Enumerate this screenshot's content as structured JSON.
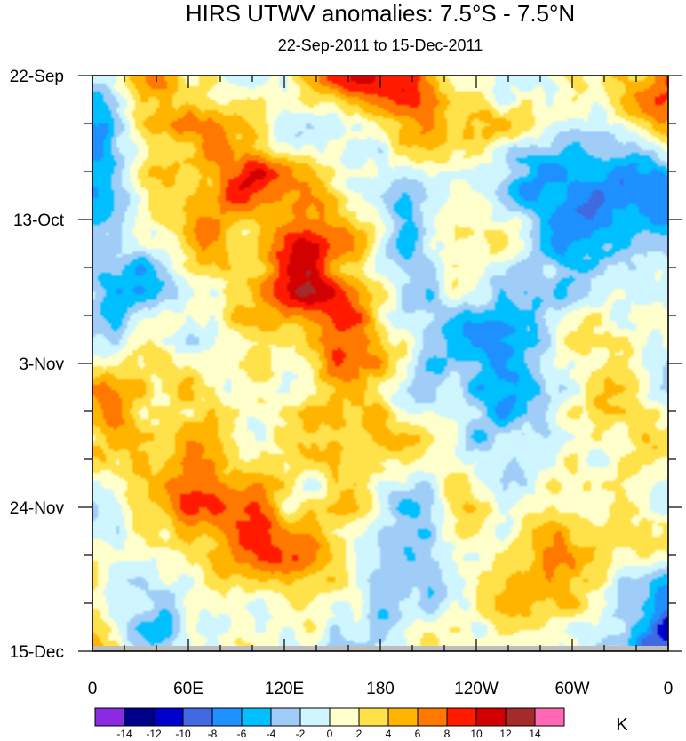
{
  "chart_data": {
    "type": "heatmap",
    "title": "HIRS UTWV anomalies: 7.5°S - 7.5°N",
    "subtitle": "22-Sep-2011 to 15-Dec-2011",
    "units": "K",
    "x_ticks": [
      {
        "lon": 0,
        "label": "0"
      },
      {
        "lon": 60,
        "label": "60E"
      },
      {
        "lon": 120,
        "label": "120E"
      },
      {
        "lon": 180,
        "label": "180"
      },
      {
        "lon": 240,
        "label": "120W"
      },
      {
        "lon": 300,
        "label": "60W"
      },
      {
        "lon": 360,
        "label": "0"
      }
    ],
    "xlim": [
      0,
      360
    ],
    "y_ticks": [
      {
        "day": 0,
        "label": "22-Sep"
      },
      {
        "day": 21,
        "label": "13-Oct"
      },
      {
        "day": 42,
        "label": "3-Nov"
      },
      {
        "day": 63,
        "label": "24-Nov"
      },
      {
        "day": 84,
        "label": "15-Dec"
      }
    ],
    "ylim": [
      0,
      84
    ],
    "colorbar": {
      "levels": [
        "-14",
        "-12",
        "-10",
        "-8",
        "-6",
        "-4",
        "-2",
        "0",
        "2",
        "4",
        "6",
        "8",
        "10",
        "12",
        "14"
      ],
      "colors": [
        "#8a2be2",
        "#00008b",
        "#0000cd",
        "#4169e1",
        "#1e90ff",
        "#00bfff",
        "#a0cdf7",
        "#cff6ff",
        "#ffffcc",
        "#ffe14a",
        "#ffb400",
        "#ff7800",
        "#ff1a00",
        "#d20000",
        "#a52a2a",
        "#ff69b4"
      ]
    },
    "missing_color": "#bebebe",
    "field_seed": 20111215
  }
}
